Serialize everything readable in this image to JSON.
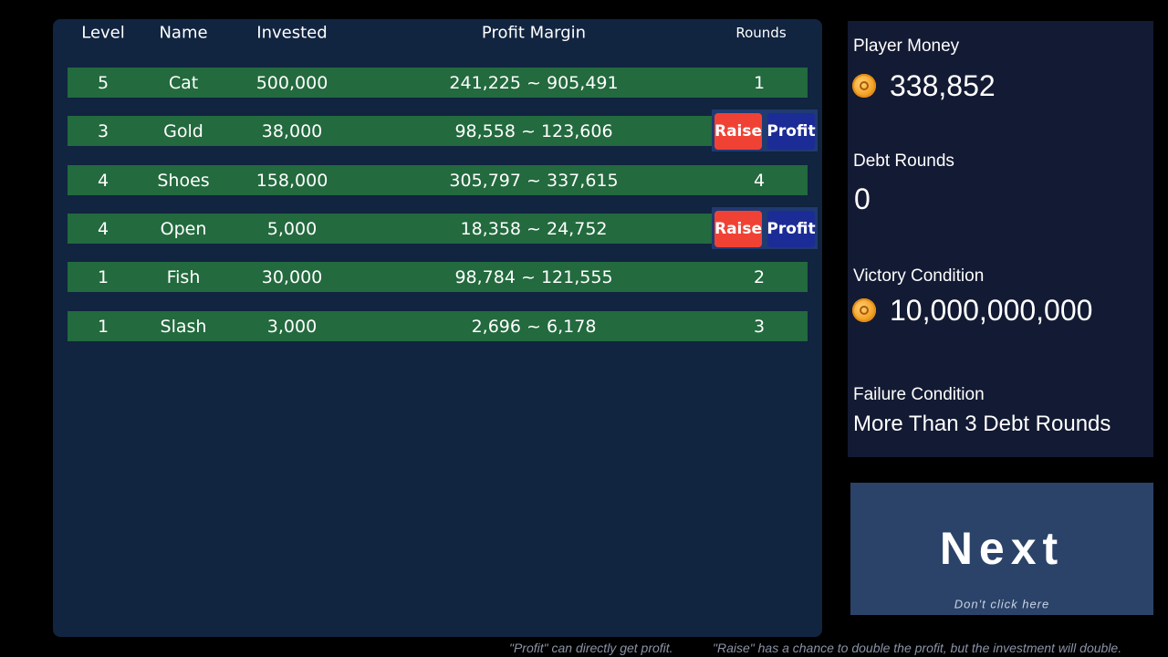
{
  "table": {
    "headers": {
      "level": "Level",
      "name": "Name",
      "invested": "Invested",
      "profit_margin": "Profit Margin",
      "rounds": "Rounds"
    },
    "rows": [
      {
        "level": "5",
        "name": "Cat",
        "invested": "500,000",
        "margin_low": "241,225",
        "separator": "~",
        "margin_high": "905,491",
        "rounds": "1"
      },
      {
        "level": "3",
        "name": "Gold",
        "invested": "38,000",
        "margin_low": "98,558",
        "separator": "~",
        "margin_high": "123,606",
        "raise_label": "Raise",
        "profit_label": "Profit"
      },
      {
        "level": "4",
        "name": "Shoes",
        "invested": "158,000",
        "margin_low": "305,797",
        "separator": "~",
        "margin_high": "337,615",
        "rounds": "4"
      },
      {
        "level": "4",
        "name": "Open",
        "invested": "5,000",
        "margin_low": "18,358",
        "separator": "~",
        "margin_high": "24,752",
        "raise_label": "Raise",
        "profit_label": "Profit"
      },
      {
        "level": "1",
        "name": "Fish",
        "invested": "30,000",
        "margin_low": "98,784",
        "separator": "~",
        "margin_high": "121,555",
        "rounds": "2"
      },
      {
        "level": "1",
        "name": "Slash",
        "invested": "3,000",
        "margin_low": "2,696",
        "separator": "~",
        "margin_high": "6,178",
        "rounds": "3"
      }
    ]
  },
  "stats": {
    "player_money_label": "Player Money",
    "player_money": "338,852",
    "debt_rounds_label": "Debt Rounds",
    "debt_rounds": "0",
    "victory_label": "Victory Condition",
    "victory_value": "10,000,000,000",
    "failure_label": "Failure Condition",
    "failure_value": "More Than 3 Debt Rounds"
  },
  "next_button": {
    "label": "Next",
    "sublabel": "Don't click here"
  },
  "hints": {
    "profit_hint": "\"Profit\" can directly get profit.",
    "raise_hint": "\"Raise\" has a chance to double the profit, but the investment will double."
  },
  "icons": {
    "money": "coin-icon"
  },
  "colors": {
    "row_bg": "#236a3e",
    "panel_bg": "#112440",
    "raise_button": "#f04234",
    "profit_button": "#1c2c96",
    "next_button": "#2b4369"
  }
}
